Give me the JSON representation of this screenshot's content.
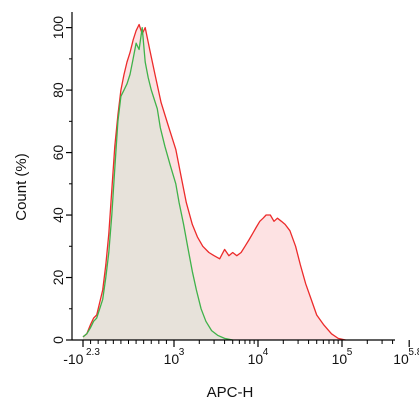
{
  "chart_data": {
    "type": "area",
    "xlabel": "APC-H",
    "ylabel": "Count (%)",
    "x_scale": "biexponential",
    "x_ticks": [
      {
        "base": "-10",
        "exp": "2.3",
        "value": -200
      },
      {
        "base": "10",
        "exp": "3",
        "value": 1000
      },
      {
        "base": "10",
        "exp": "4",
        "value": 10000
      },
      {
        "base": "10",
        "exp": "5",
        "value": 100000
      },
      {
        "base": "10",
        "exp": "5.8",
        "value": 630957
      }
    ],
    "ylim": [
      0,
      105
    ],
    "y_ticks": [
      0,
      20,
      40,
      60,
      80,
      100
    ],
    "grid": false,
    "legend": "none",
    "series": [
      {
        "color": "#ec2b2b",
        "fill": "#fde2e3",
        "points": [
          [
            -200,
            1
          ],
          [
            -150,
            2
          ],
          [
            -100,
            5
          ],
          [
            -60,
            7
          ],
          [
            -20,
            8
          ],
          [
            20,
            12
          ],
          [
            60,
            16
          ],
          [
            100,
            24
          ],
          [
            140,
            34
          ],
          [
            180,
            48
          ],
          [
            220,
            62
          ],
          [
            260,
            72
          ],
          [
            300,
            80
          ],
          [
            340,
            85
          ],
          [
            380,
            89
          ],
          [
            420,
            92
          ],
          [
            460,
            96
          ],
          [
            500,
            99
          ],
          [
            540,
            101
          ],
          [
            580,
            98
          ],
          [
            620,
            100
          ],
          [
            680,
            93
          ],
          [
            750,
            85
          ],
          [
            830,
            76
          ],
          [
            920,
            69
          ],
          [
            1050,
            61
          ],
          [
            1200,
            53
          ],
          [
            1400,
            44
          ],
          [
            1650,
            37
          ],
          [
            1900,
            33
          ],
          [
            2200,
            30
          ],
          [
            2600,
            28
          ],
          [
            3000,
            27
          ],
          [
            3500,
            26
          ],
          [
            4000,
            29
          ],
          [
            4500,
            27
          ],
          [
            5000,
            28
          ],
          [
            5600,
            27
          ],
          [
            6300,
            28
          ],
          [
            7000,
            30
          ],
          [
            7800,
            32
          ],
          [
            8600,
            34
          ],
          [
            9500,
            36
          ],
          [
            10500,
            38
          ],
          [
            11500,
            39
          ],
          [
            12500,
            40
          ],
          [
            14000,
            40
          ],
          [
            15500,
            38
          ],
          [
            17000,
            39
          ],
          [
            19000,
            38
          ],
          [
            21000,
            37
          ],
          [
            24000,
            35
          ],
          [
            28000,
            30
          ],
          [
            32000,
            24
          ],
          [
            37000,
            18
          ],
          [
            43000,
            13
          ],
          [
            50000,
            8
          ],
          [
            60000,
            5
          ],
          [
            75000,
            2
          ],
          [
            90000,
            0.5
          ],
          [
            110000,
            0
          ]
        ]
      },
      {
        "color": "#3fb24a",
        "fill": "#e7e2da",
        "points": [
          [
            -200,
            1
          ],
          [
            -150,
            2
          ],
          [
            -100,
            4
          ],
          [
            -60,
            6
          ],
          [
            -20,
            7
          ],
          [
            20,
            10
          ],
          [
            60,
            13
          ],
          [
            100,
            20
          ],
          [
            140,
            28
          ],
          [
            180,
            40
          ],
          [
            220,
            55
          ],
          [
            260,
            70
          ],
          [
            300,
            78
          ],
          [
            340,
            80
          ],
          [
            380,
            82
          ],
          [
            420,
            85
          ],
          [
            460,
            90
          ],
          [
            500,
            95
          ],
          [
            540,
            93
          ],
          [
            580,
            100
          ],
          [
            620,
            89
          ],
          [
            660,
            84
          ],
          [
            700,
            80
          ],
          [
            740,
            77
          ],
          [
            780,
            74
          ],
          [
            820,
            68
          ],
          [
            880,
            62
          ],
          [
            950,
            56
          ],
          [
            1050,
            50
          ],
          [
            1150,
            44
          ],
          [
            1300,
            37
          ],
          [
            1450,
            30
          ],
          [
            1650,
            22
          ],
          [
            1850,
            16
          ],
          [
            2100,
            10
          ],
          [
            2400,
            6
          ],
          [
            2800,
            3
          ],
          [
            3300,
            1.5
          ],
          [
            4000,
            0.5
          ],
          [
            5000,
            0
          ]
        ]
      }
    ]
  }
}
